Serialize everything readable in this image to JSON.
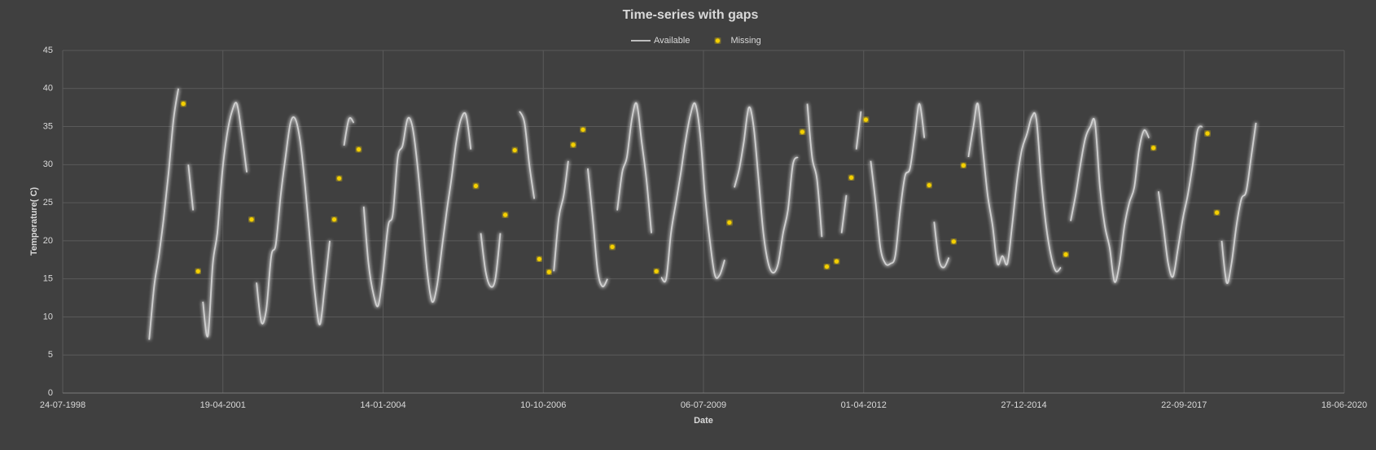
{
  "chart_data": {
    "type": "line",
    "title": "Time-series with gaps",
    "x_label": "Date",
    "y_label": "Temperature( C)",
    "legend": "top",
    "grid": true,
    "xlim": [
      "1998-07-24",
      "2020-06-18"
    ],
    "xticks": [
      {
        "value": "1998-07-24",
        "label": "24-07-1998"
      },
      {
        "value": "2001-04-19",
        "label": "19-04-2001"
      },
      {
        "value": "2004-01-14",
        "label": "14-01-2004"
      },
      {
        "value": "2006-10-10",
        "label": "10-10-2006"
      },
      {
        "value": "2009-07-06",
        "label": "06-07-2009"
      },
      {
        "value": "2012-04-01",
        "label": "01-04-2012"
      },
      {
        "value": "2014-12-27",
        "label": "27-12-2014"
      },
      {
        "value": "2017-09-22",
        "label": "22-09-2017"
      },
      {
        "value": "2020-06-18",
        "label": "18-06-2020"
      }
    ],
    "ylim": [
      0,
      45
    ],
    "yticks": [
      0,
      5,
      10,
      15,
      20,
      25,
      30,
      35,
      40,
      45
    ],
    "x": [
      "2000-01-15",
      "2000-02-15",
      "2000-03-15",
      "2000-04-15",
      "2000-05-15",
      "2000-06-15",
      "2000-07-15",
      "2000-08-15",
      "2000-09-15",
      "2000-10-15",
      "2000-11-15",
      "2000-12-15",
      "2001-01-15",
      "2001-02-15",
      "2001-03-15",
      "2001-04-15",
      "2001-05-15",
      "2001-06-15",
      "2001-07-15",
      "2001-08-15",
      "2001-09-15",
      "2001-10-15",
      "2001-11-15",
      "2001-12-15",
      "2002-01-15",
      "2002-02-15",
      "2002-03-15",
      "2002-04-15",
      "2002-05-15",
      "2002-06-15",
      "2002-07-15",
      "2002-08-15",
      "2002-09-15",
      "2002-10-15",
      "2002-11-15",
      "2002-12-15",
      "2003-01-15",
      "2003-02-15",
      "2003-03-15",
      "2003-04-15",
      "2003-05-15",
      "2003-06-15",
      "2003-07-15",
      "2003-08-15",
      "2003-09-15",
      "2003-10-15",
      "2003-11-15",
      "2003-12-15",
      "2004-01-15",
      "2004-02-15",
      "2004-03-15",
      "2004-04-15",
      "2004-05-15",
      "2004-06-15",
      "2004-07-15",
      "2004-08-15",
      "2004-09-15",
      "2004-10-15",
      "2004-11-15",
      "2004-12-15",
      "2005-01-15",
      "2005-02-15",
      "2005-03-15",
      "2005-04-15",
      "2005-05-15",
      "2005-06-15",
      "2005-07-15",
      "2005-08-15",
      "2005-09-15",
      "2005-10-15",
      "2005-11-15",
      "2005-12-15",
      "2006-01-15",
      "2006-02-15",
      "2006-03-15",
      "2006-04-15",
      "2006-05-15",
      "2006-06-15",
      "2006-07-15",
      "2006-08-15",
      "2006-09-15",
      "2006-10-15",
      "2006-11-15",
      "2006-12-15",
      "2007-01-15",
      "2007-02-15",
      "2007-03-15",
      "2007-04-15",
      "2007-05-15",
      "2007-06-15",
      "2007-07-15",
      "2007-08-15",
      "2007-09-15",
      "2007-10-15",
      "2007-11-15",
      "2007-12-15",
      "2008-01-15",
      "2008-02-15",
      "2008-03-15",
      "2008-04-15",
      "2008-05-15",
      "2008-06-15",
      "2008-07-15",
      "2008-08-15",
      "2008-09-15",
      "2008-10-15",
      "2008-11-15",
      "2008-12-15",
      "2009-01-15",
      "2009-02-15",
      "2009-03-15",
      "2009-04-15",
      "2009-05-15",
      "2009-06-15",
      "2009-07-15",
      "2009-08-15",
      "2009-09-15",
      "2009-10-15",
      "2009-11-15",
      "2009-12-15",
      "2010-01-15",
      "2010-02-15",
      "2010-03-15",
      "2010-04-15",
      "2010-05-15",
      "2010-06-15",
      "2010-07-15",
      "2010-08-15",
      "2010-09-15",
      "2010-10-15",
      "2010-11-15",
      "2010-12-15",
      "2011-01-15",
      "2011-02-15",
      "2011-03-15",
      "2011-04-15",
      "2011-05-15",
      "2011-06-15",
      "2011-07-15",
      "2011-08-15",
      "2011-09-15",
      "2011-10-15",
      "2011-11-15",
      "2011-12-15",
      "2012-01-15",
      "2012-02-15",
      "2012-03-15",
      "2012-04-15",
      "2012-05-15",
      "2012-06-15",
      "2012-07-15",
      "2012-08-15",
      "2012-09-15",
      "2012-10-15",
      "2012-11-15",
      "2012-12-15",
      "2013-01-15",
      "2013-02-15",
      "2013-03-15",
      "2013-04-15",
      "2013-05-15",
      "2013-06-15",
      "2013-07-15",
      "2013-08-15",
      "2013-09-15",
      "2013-10-15",
      "2013-11-15",
      "2013-12-15",
      "2014-01-15",
      "2014-02-15",
      "2014-03-15",
      "2014-04-15",
      "2014-05-15",
      "2014-06-15",
      "2014-07-15",
      "2014-08-15",
      "2014-09-15",
      "2014-10-15",
      "2014-11-15",
      "2014-12-15",
      "2015-01-15",
      "2015-02-15",
      "2015-03-15",
      "2015-04-15",
      "2015-05-15",
      "2015-06-15",
      "2015-07-15",
      "2015-08-15",
      "2015-09-15",
      "2015-10-15",
      "2015-11-15",
      "2015-12-15",
      "2016-01-15",
      "2016-02-15",
      "2016-03-15",
      "2016-04-15",
      "2016-05-15",
      "2016-06-15",
      "2016-07-15",
      "2016-08-15",
      "2016-09-15",
      "2016-10-15",
      "2016-11-15",
      "2016-12-15",
      "2017-01-15",
      "2017-02-15",
      "2017-03-15",
      "2017-04-15",
      "2017-05-15",
      "2017-06-15",
      "2017-07-15",
      "2017-08-15",
      "2017-09-15",
      "2017-10-15",
      "2017-11-15",
      "2017-12-15",
      "2018-01-15",
      "2018-02-15",
      "2018-03-15",
      "2018-04-15",
      "2018-05-15",
      "2018-06-15",
      "2018-07-15",
      "2018-08-15",
      "2018-09-15",
      "2018-10-15",
      "2018-11-15",
      "2018-12-15"
    ],
    "series": [
      {
        "name": "Available",
        "type": "line",
        "color": "#d0d0d0",
        "values": [
          7,
          14,
          18,
          23,
          29,
          36,
          40,
          null,
          30,
          24,
          null,
          12,
          7.5,
          17,
          21,
          29,
          34,
          37,
          38,
          34,
          29,
          null,
          14.5,
          9.3,
          11,
          18,
          19.5,
          26,
          31,
          35.5,
          36,
          33,
          27,
          20,
          13,
          9,
          14,
          20,
          null,
          null,
          32.5,
          36,
          35.5,
          null,
          24.5,
          17,
          13,
          11.5,
          16,
          22,
          23.5,
          31,
          32.5,
          36,
          35,
          30,
          23,
          16,
          12,
          14,
          19,
          24,
          28,
          33,
          36,
          36.5,
          32,
          null,
          21,
          16,
          14,
          15,
          21,
          null,
          null,
          null,
          37,
          35.5,
          30,
          25.5,
          null,
          null,
          null,
          16,
          23,
          26,
          30.5,
          null,
          null,
          null,
          29.5,
          23,
          16,
          14,
          15,
          null,
          24,
          29,
          31,
          36,
          38,
          33,
          28,
          21,
          null,
          15.2,
          15,
          21,
          25,
          29,
          33,
          36.5,
          38,
          34,
          26,
          20,
          15.5,
          15.5,
          17.5,
          null,
          27,
          29.5,
          33,
          37.5,
          35,
          28,
          21,
          17,
          15.8,
          17,
          21,
          24,
          30,
          31,
          null,
          38,
          31,
          28,
          20.5,
          null,
          null,
          null,
          21,
          26,
          null,
          32,
          37,
          null,
          30.5,
          25,
          19,
          17,
          17,
          18,
          24,
          28.5,
          29.5,
          34,
          38,
          33.5,
          null,
          22.5,
          17.5,
          16.5,
          17.8,
          null,
          null,
          null,
          31,
          35,
          38,
          32,
          26,
          22,
          17,
          18,
          17,
          22,
          28,
          32,
          34,
          36.3,
          36,
          28,
          22,
          18,
          16,
          16.5,
          null,
          22.6,
          26,
          30,
          33.5,
          35,
          35.5,
          27,
          22,
          19,
          14.6,
          17,
          22,
          25,
          27,
          32,
          34.5,
          33.5,
          null,
          26.5,
          22,
          17,
          15.3,
          19,
          23,
          26,
          30,
          34.5,
          35,
          null,
          null,
          null,
          20,
          14.5,
          17,
          22,
          25.5,
          26.5,
          31,
          35.5
        ]
      },
      {
        "name": "Missing",
        "type": "scatter",
        "color": "#f5d000",
        "values": [
          null,
          null,
          null,
          null,
          null,
          null,
          null,
          38,
          null,
          null,
          16,
          null,
          null,
          null,
          null,
          null,
          null,
          null,
          null,
          null,
          null,
          22.8,
          null,
          null,
          null,
          null,
          null,
          null,
          null,
          null,
          null,
          null,
          null,
          null,
          null,
          null,
          null,
          null,
          22.8,
          28.2,
          null,
          null,
          null,
          32,
          null,
          null,
          null,
          null,
          null,
          null,
          null,
          null,
          null,
          null,
          null,
          null,
          null,
          null,
          null,
          null,
          null,
          null,
          null,
          null,
          null,
          null,
          null,
          27.2,
          null,
          null,
          null,
          null,
          null,
          23.4,
          null,
          31.9,
          null,
          null,
          null,
          null,
          17.6,
          null,
          15.9,
          null,
          null,
          null,
          null,
          32.6,
          null,
          34.6,
          null,
          null,
          null,
          null,
          null,
          19.2,
          null,
          null,
          null,
          null,
          null,
          null,
          null,
          null,
          16,
          null,
          null,
          null,
          null,
          null,
          null,
          null,
          null,
          null,
          null,
          null,
          null,
          null,
          null,
          22.4,
          null,
          null,
          null,
          null,
          null,
          null,
          null,
          null,
          null,
          null,
          null,
          null,
          null,
          null,
          34.3,
          null,
          null,
          null,
          null,
          16.6,
          null,
          17.3,
          null,
          null,
          28.3,
          null,
          null,
          35.9,
          null,
          null,
          null,
          null,
          null,
          null,
          null,
          null,
          null,
          null,
          null,
          null,
          27.3,
          null,
          null,
          null,
          null,
          19.9,
          null,
          29.9,
          null,
          null,
          null,
          null,
          null,
          null,
          null,
          null,
          null,
          null,
          null,
          null,
          null,
          null,
          null,
          null,
          null,
          null,
          null,
          null,
          18.2,
          null,
          null,
          null,
          null,
          null,
          null,
          null,
          null,
          null,
          null,
          null,
          null,
          null,
          null,
          null,
          null,
          null,
          32.2,
          null,
          null,
          null,
          null,
          null,
          null,
          null,
          null,
          null,
          null,
          34.1,
          null,
          23.7,
          null,
          null,
          null,
          null,
          null,
          null,
          null,
          null
        ]
      }
    ]
  }
}
